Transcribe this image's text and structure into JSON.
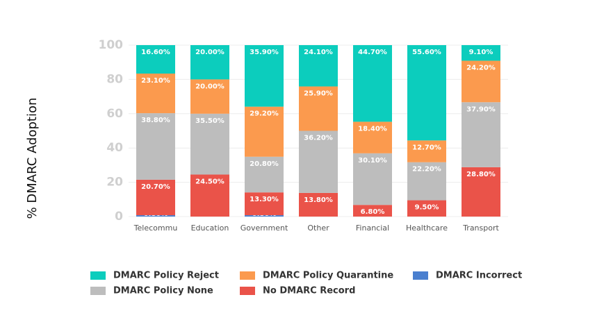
{
  "chart_data": {
    "type": "stacked_bar",
    "y_label": "% DMARC Adoption",
    "categories": [
      "Telecommu",
      "Education",
      "Government",
      "Other",
      "Financial",
      "Healthcare",
      "Transport"
    ],
    "series": [
      {
        "name": "DMARC Policy Reject",
        "color": "#0ccdbd",
        "values": [
          16.6,
          20.0,
          35.9,
          24.1,
          44.7,
          55.6,
          9.1
        ],
        "value_labels": [
          "16.60%",
          "20.00%",
          "35.90%",
          "24.10%",
          "44.70%",
          "55.60%",
          "9.10%"
        ]
      },
      {
        "name": "DMARC Policy Quarantine",
        "color": "#fb9a4e",
        "values": [
          23.1,
          20.0,
          29.2,
          25.9,
          18.4,
          12.7,
          24.2
        ],
        "value_labels": [
          "23.10%",
          "20.00%",
          "29.20%",
          "25.90%",
          "18.40%",
          "12.70%",
          "24.20%"
        ]
      },
      {
        "name": "DMARC Incorrect",
        "color": "#4a7fcf",
        "values": [
          0.8,
          null,
          0.8,
          null,
          null,
          null,
          null
        ],
        "value_labels": [
          "0.80%",
          null,
          "0.80%",
          null,
          null,
          null,
          null
        ]
      },
      {
        "name": "DMARC Policy None",
        "color": "#bdbdbd",
        "values": [
          38.8,
          35.5,
          20.8,
          36.2,
          30.1,
          22.2,
          37.9
        ],
        "value_labels": [
          "38.80%",
          "35.50%",
          "20.80%",
          "36.20%",
          "30.10%",
          "22.20%",
          "37.90%"
        ]
      },
      {
        "name": "No DMARC Record",
        "color": "#ea5349",
        "values": [
          20.7,
          24.5,
          13.3,
          13.8,
          6.8,
          9.5,
          28.8
        ],
        "value_labels": [
          "20.70%",
          "24.50%",
          "13.30%",
          "13.80%",
          "6.80%",
          "9.50%",
          "28.80%"
        ]
      }
    ],
    "ylim": [
      0,
      100
    ],
    "yticks": [
      0,
      20,
      40,
      60,
      80,
      100
    ],
    "grid": true
  }
}
